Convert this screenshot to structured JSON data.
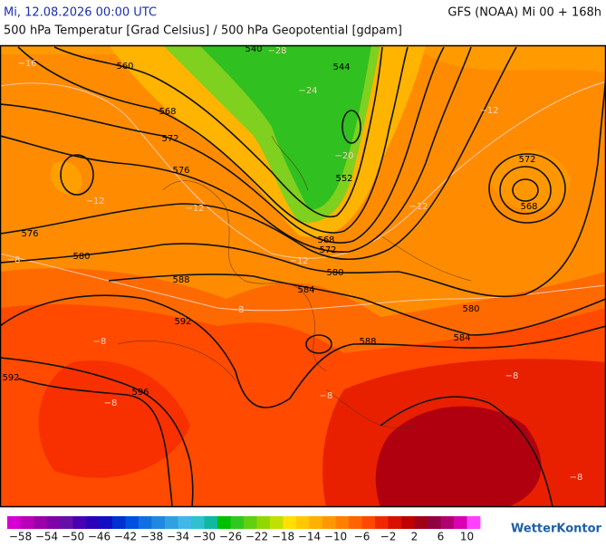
{
  "header": {
    "title": "Mi, 12.08.2026 00:00 UTC",
    "model": "GFS (NOAA) Mi 00 + 168h",
    "subtitle": "500 hPa Temperatur [Grad Celsius] / 500 hPa Geopotential [gdpam]"
  },
  "map": {
    "contour_labels": [
      "560",
      "568",
      "572",
      "576",
      "576",
      "580",
      "588",
      "592",
      "592",
      "596",
      "540",
      "544",
      "552",
      "568",
      "572",
      "580",
      "584",
      "588",
      "580",
      "584",
      "572",
      "568"
    ],
    "temperature_labels": [
      "−16",
      "−28",
      "−24",
      "−20",
      "−12",
      "−12",
      "−12",
      "−12",
      "−12",
      "−8",
      "−8",
      "−8",
      "−8",
      "−8",
      "−8",
      "−8"
    ]
  },
  "colorbar": {
    "lim": [
      -60,
      12
    ],
    "colors": [
      "#d400d4",
      "#b800b8",
      "#9c00a8",
      "#8000a8",
      "#6410a8",
      "#4800b0",
      "#2a00b8",
      "#1010c0",
      "#0030d0",
      "#0050e0",
      "#1070e0",
      "#2088e0",
      "#30a0e0",
      "#40b8e8",
      "#30c0d0",
      "#10b8a0",
      "#00c000",
      "#30c820",
      "#60d010",
      "#90d800",
      "#c0e000",
      "#ffe000",
      "#ffc800",
      "#ffb000",
      "#ff9800",
      "#ff8000",
      "#ff6400",
      "#ff4800",
      "#f02800",
      "#d81000",
      "#c00000",
      "#a00018",
      "#900040",
      "#b00070",
      "#d800b0",
      "#ff40ff"
    ],
    "ticks": [
      {
        "value": -58,
        "label": "−58"
      },
      {
        "value": -54,
        "label": "−54"
      },
      {
        "value": -50,
        "label": "−50"
      },
      {
        "value": -46,
        "label": "−46"
      },
      {
        "value": -42,
        "label": "−42"
      },
      {
        "value": -38,
        "label": "−38"
      },
      {
        "value": -34,
        "label": "−34"
      },
      {
        "value": -30,
        "label": "−30"
      },
      {
        "value": -26,
        "label": "−26"
      },
      {
        "value": -22,
        "label": "−22"
      },
      {
        "value": -18,
        "label": "−18"
      },
      {
        "value": -14,
        "label": "−14"
      },
      {
        "value": -10,
        "label": "−10"
      },
      {
        "value": -6,
        "label": "−6"
      },
      {
        "value": -2,
        "label": "−2"
      },
      2,
      6,
      10
    ]
  },
  "logo": "WetterKontor"
}
